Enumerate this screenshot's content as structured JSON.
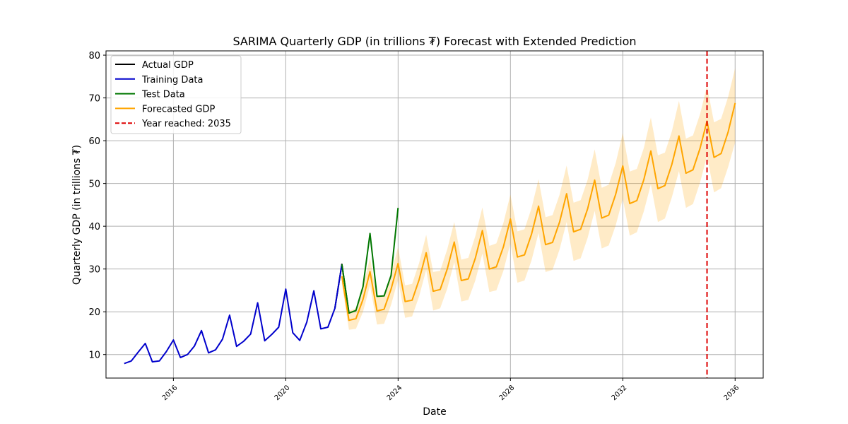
{
  "chart_data": {
    "type": "line",
    "title": "SARIMA Quarterly GDP (in trillions ₮) Forecast with Extended Prediction",
    "xlabel": "Date",
    "ylabel": "Quarterly GDP (in trillions ₮)",
    "xlim": [
      2013.6,
      2037.0
    ],
    "ylim": [
      4.5,
      81
    ],
    "x_ticks": [
      2016,
      2020,
      2024,
      2028,
      2032,
      2036
    ],
    "y_ticks": [
      10,
      20,
      30,
      40,
      50,
      60,
      70,
      80
    ],
    "grid": true,
    "legend_position": "top-left",
    "series": [
      {
        "name": "Actual GDP",
        "color": "#000000",
        "style": "solid",
        "x": [
          2021.75,
          2022.0,
          2022.25
        ],
        "y": [
          20.8,
          31.1,
          19.7
        ]
      },
      {
        "name": "Training Data",
        "color": "#0000cc",
        "style": "solid",
        "x": [
          2014.25,
          2014.5,
          2014.75,
          2015.0,
          2015.25,
          2015.5,
          2015.75,
          2016.0,
          2016.25,
          2016.5,
          2016.75,
          2017.0,
          2017.25,
          2017.5,
          2017.75,
          2018.0,
          2018.25,
          2018.5,
          2018.75,
          2019.0,
          2019.25,
          2019.5,
          2019.75,
          2020.0,
          2020.25,
          2020.5,
          2020.75,
          2021.0,
          2021.25,
          2021.5,
          2021.75,
          2022.0
        ],
        "y": [
          7.9,
          8.5,
          10.6,
          12.6,
          8.3,
          8.5,
          10.7,
          13.4,
          9.3,
          10.0,
          12.0,
          15.6,
          10.4,
          11.1,
          13.6,
          19.2,
          11.9,
          13.1,
          14.8,
          22.1,
          13.2,
          14.7,
          16.4,
          25.3,
          15.1,
          13.3,
          17.6,
          24.9,
          16.0,
          16.4,
          20.8,
          31.1
        ]
      },
      {
        "name": "Test Data",
        "color": "#007700",
        "style": "solid",
        "x": [
          2022.0,
          2022.25,
          2022.5,
          2022.75,
          2023.0,
          2023.25,
          2023.5,
          2023.75,
          2024.0
        ],
        "y": [
          31.1,
          19.7,
          20.3,
          25.9,
          38.3,
          23.6,
          23.7,
          28.5,
          44.3
        ]
      },
      {
        "name": "Forecasted GDP",
        "color": "#ffa500",
        "style": "solid",
        "x": [
          2022.0,
          2022.25,
          2022.5,
          2022.75,
          2023.0,
          2023.25,
          2023.5,
          2023.75,
          2024.0,
          2024.25,
          2024.5,
          2024.75,
          2025.0,
          2025.25,
          2025.5,
          2025.75,
          2026.0,
          2026.25,
          2026.5,
          2026.75,
          2027.0,
          2027.25,
          2027.5,
          2027.75,
          2028.0,
          2028.25,
          2028.5,
          2028.75,
          2029.0,
          2029.25,
          2029.5,
          2029.75,
          2030.0,
          2030.25,
          2030.5,
          2030.75,
          2031.0,
          2031.25,
          2031.5,
          2031.75,
          2032.0,
          2032.25,
          2032.5,
          2032.75,
          2033.0,
          2033.25,
          2033.5,
          2033.75,
          2034.0,
          2034.25,
          2034.5,
          2034.75,
          2035.0,
          2035.25,
          2035.5,
          2035.75,
          2036.0
        ],
        "y": [
          28.3,
          18.0,
          18.4,
          22.9,
          29.4,
          20.2,
          20.6,
          25.3,
          31.3,
          22.4,
          22.7,
          27.5,
          33.8,
          24.8,
          25.2,
          30.0,
          36.3,
          27.3,
          27.7,
          32.5,
          39.0,
          30.0,
          30.5,
          35.2,
          41.7,
          32.8,
          33.3,
          38.1,
          44.7,
          35.7,
          36.2,
          41.0,
          47.6,
          38.7,
          39.3,
          44.1,
          50.8,
          41.9,
          42.6,
          47.5,
          54.1,
          45.3,
          46.0,
          50.9,
          57.6,
          48.8,
          49.5,
          54.5,
          61.1,
          52.4,
          53.2,
          58.2,
          64.6,
          56.1,
          57.0,
          62.0,
          68.8
        ],
        "ci_lower": [
          26.5,
          15.8,
          16.0,
          20.0,
          26.2,
          17.0,
          17.2,
          21.6,
          27.5,
          18.6,
          18.9,
          23.6,
          29.8,
          20.3,
          20.8,
          25.4,
          31.6,
          22.4,
          22.8,
          27.3,
          33.6,
          24.6,
          25.0,
          29.6,
          36.0,
          26.8,
          27.3,
          32.0,
          38.4,
          29.3,
          29.8,
          34.6,
          41.0,
          31.9,
          32.5,
          37.3,
          43.6,
          34.8,
          35.5,
          40.2,
          46.4,
          37.8,
          38.6,
          43.5,
          49.8,
          41.0,
          41.8,
          46.8,
          52.9,
          44.3,
          45.2,
          50.2,
          56.4,
          47.9,
          48.9,
          53.8,
          59.6
        ],
        "ci_upper": [
          30.1,
          20.2,
          20.8,
          25.8,
          32.6,
          23.4,
          24.0,
          29.0,
          35.1,
          26.2,
          26.5,
          31.4,
          38.0,
          29.3,
          29.6,
          34.6,
          41.0,
          32.2,
          32.6,
          37.7,
          44.4,
          35.4,
          36.0,
          40.8,
          47.4,
          38.8,
          39.3,
          44.2,
          51.0,
          42.1,
          42.6,
          47.4,
          54.2,
          45.5,
          46.1,
          50.9,
          58.0,
          49.0,
          49.7,
          54.8,
          61.8,
          52.8,
          53.4,
          58.3,
          65.4,
          56.6,
          57.2,
          62.2,
          69.3,
          60.5,
          61.2,
          66.2,
          72.8,
          64.3,
          65.1,
          70.2,
          77.0
        ]
      }
    ],
    "vline": {
      "name": "Year reached: 2035",
      "x": 2035.0,
      "color": "#dd0000",
      "style": "dashed"
    }
  }
}
